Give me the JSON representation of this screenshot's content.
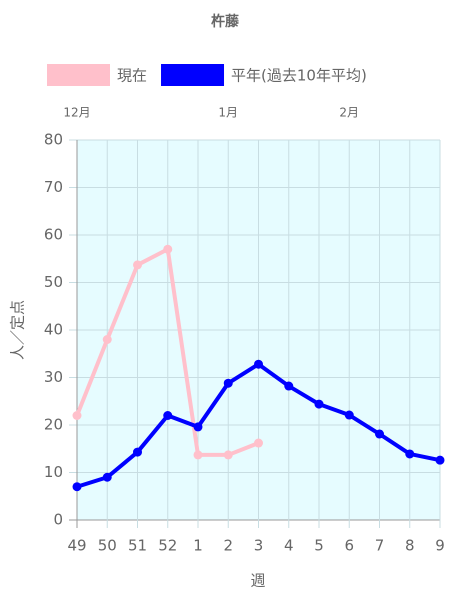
{
  "chart_data": {
    "type": "line",
    "title": "杵藤",
    "categories": [
      "49",
      "50",
      "51",
      "52",
      "1",
      "2",
      "3",
      "4",
      "5",
      "6",
      "7",
      "8",
      "9"
    ],
    "month_labels": [
      "12月",
      null,
      null,
      null,
      null,
      "1月",
      null,
      null,
      null,
      "2月",
      null,
      null,
      null
    ],
    "series": [
      {
        "name": "現在",
        "color": "#ffc0cb",
        "values": [
          22,
          38,
          53.7,
          57,
          13.7,
          13.7,
          16.2,
          null,
          null,
          null,
          null,
          null,
          null
        ]
      },
      {
        "name": "平年(過去10年平均)",
        "color": "#0000ff",
        "values": [
          7,
          9,
          14.3,
          22,
          19.6,
          28.8,
          32.8,
          28.2,
          24.4,
          22.1,
          18.1,
          13.9,
          12.6
        ]
      }
    ],
    "xlabel": "週",
    "ylabel": "人／定点",
    "ylim": [
      0,
      80
    ],
    "yticks": [
      0,
      10,
      20,
      30,
      40,
      50,
      60,
      70,
      80
    ],
    "grid": true,
    "plot_background": "#e6fcff"
  }
}
